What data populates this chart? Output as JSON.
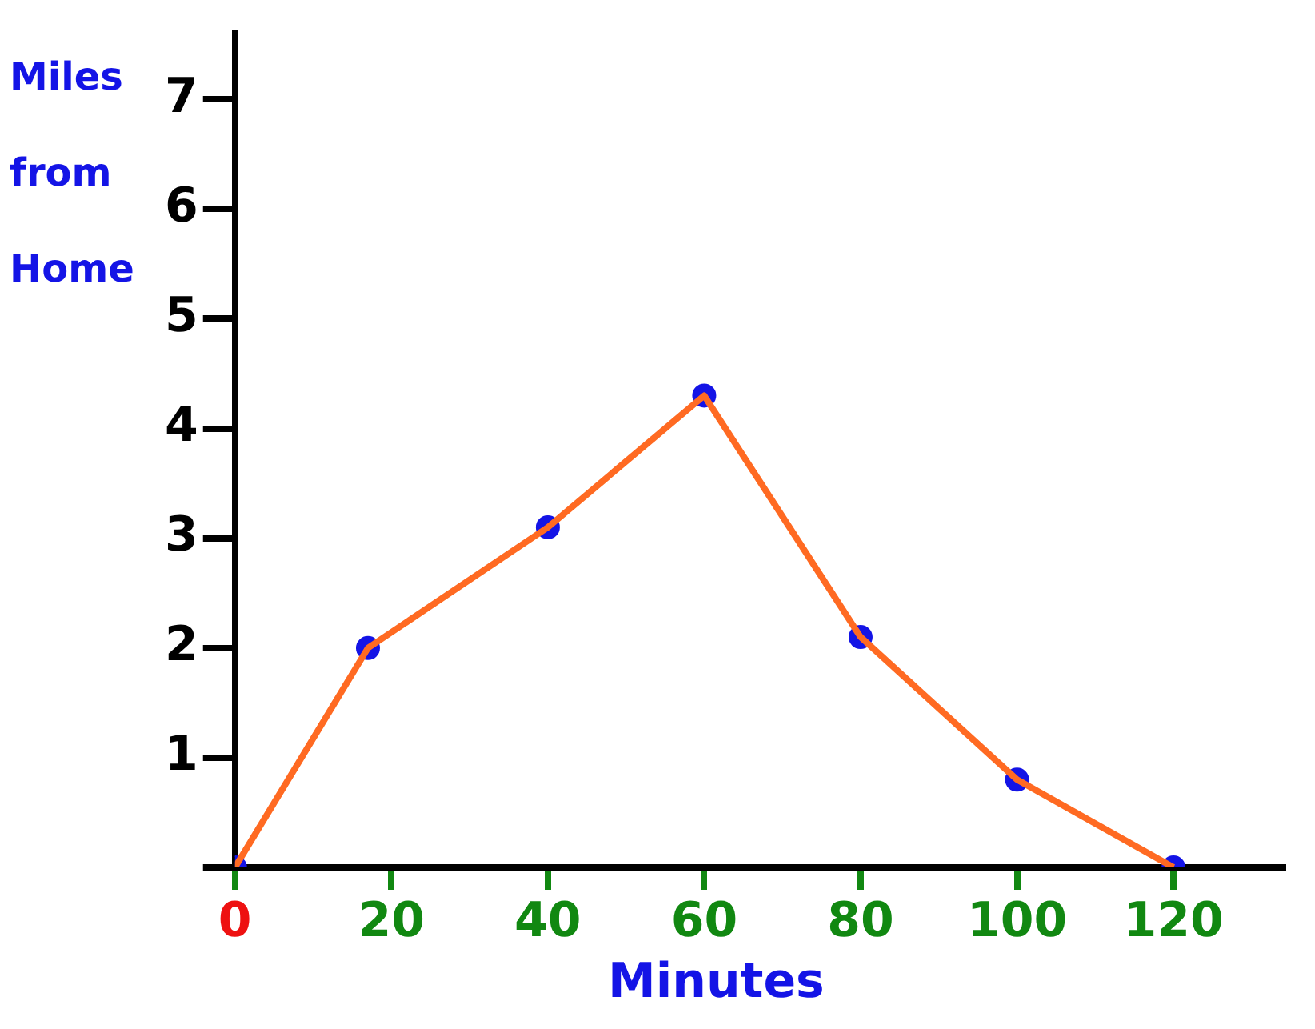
{
  "chart_data": {
    "type": "line",
    "xlabel": "Minutes",
    "ylabel": "Miles from Home",
    "x": [
      0,
      17,
      40,
      60,
      80,
      100,
      120
    ],
    "series": [
      {
        "color": "#ff6a22",
        "marker": "none",
        "values": [
          0,
          2,
          3.1,
          4.3,
          2.1,
          0.8,
          0
        ]
      },
      {
        "type": "scatter",
        "color": "#1414e6",
        "marker": "circle",
        "values": [
          0,
          2,
          3.1,
          4.3,
          2.1,
          0.8,
          0
        ]
      }
    ],
    "xlim": [
      0,
      134
    ],
    "xticks": [
      0,
      20,
      40,
      60,
      80,
      100,
      120
    ],
    "ylim": [
      0,
      7.6
    ],
    "yticks": [
      {
        "value": 0,
        "label": null
      },
      1,
      2,
      3,
      4,
      5,
      6,
      7
    ],
    "grid": false,
    "legend": false
  }
}
